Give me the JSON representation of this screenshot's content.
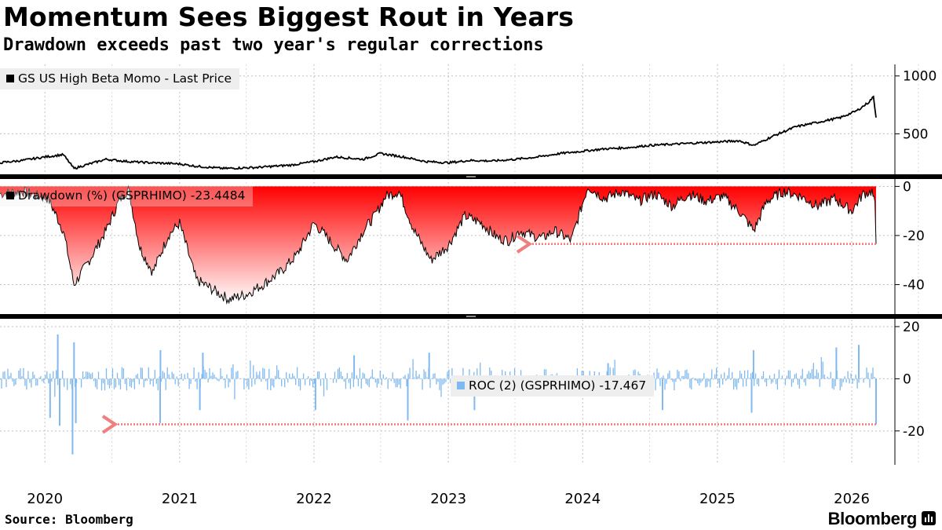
{
  "title": "Momentum Sees Biggest Rout in Years",
  "subtitle": "Drawdown exceeds past two year's regular corrections",
  "source": "Source: Bloomberg",
  "brand": "Bloomberg",
  "colors": {
    "price_line": "#000000",
    "drawdown_fill_top": "#ff0000",
    "drawdown_fill_bottom": "#ffffff",
    "roc_bars": "#7fb9f0",
    "annotation_arrow": "#f08080",
    "grid": "#bfbfbf",
    "divider": "#000000"
  },
  "chart_data": [
    {
      "type": "line",
      "panel": "price",
      "legend": "GS US High Beta Momo - Last Price",
      "ylim": [
        150,
        1100
      ],
      "yticks": [
        500,
        1000
      ],
      "x": [
        "2019-09-01",
        "2019-11-01",
        "2020-01-01",
        "2020-02-20",
        "2020-03-20",
        "2020-05-01",
        "2020-06-15",
        "2020-08-15",
        "2020-10-15",
        "2021-01-01",
        "2021-02-15",
        "2021-05-01",
        "2021-08-01",
        "2021-11-01",
        "2022-01-01",
        "2022-03-01",
        "2022-05-15",
        "2022-07-01",
        "2022-09-01",
        "2022-11-01",
        "2023-01-01",
        "2023-03-01",
        "2023-05-01",
        "2023-07-01",
        "2023-09-01",
        "2023-11-01",
        "2024-01-01",
        "2024-03-01",
        "2024-05-01",
        "2024-07-01",
        "2024-09-01",
        "2024-11-01",
        "2025-01-01",
        "2025-03-01",
        "2025-04-10",
        "2025-06-01",
        "2025-08-01",
        "2025-10-01",
        "2025-12-01",
        "2026-01-15",
        "2026-02-15",
        "2026-03-01",
        "2026-03-08"
      ],
      "y": [
        250,
        270,
        300,
        320,
        200,
        240,
        280,
        260,
        250,
        240,
        220,
        200,
        210,
        230,
        260,
        300,
        280,
        330,
        300,
        260,
        250,
        270,
        265,
        280,
        300,
        330,
        350,
        370,
        380,
        400,
        410,
        420,
        430,
        440,
        400,
        480,
        560,
        600,
        640,
        700,
        770,
        820,
        640
      ]
    },
    {
      "type": "area",
      "panel": "drawdown",
      "legend": "Drawdown (%) (GSPRHIMO) -23.4484",
      "ylim": [
        -52,
        3
      ],
      "yticks": [
        0,
        -20,
        -40
      ],
      "x": [
        "2019-09-01",
        "2019-11-01",
        "2020-01-10",
        "2020-02-20",
        "2020-03-20",
        "2020-05-01",
        "2020-06-15",
        "2020-07-20",
        "2020-08-15",
        "2020-09-15",
        "2020-10-20",
        "2020-12-01",
        "2021-01-01",
        "2021-02-15",
        "2021-04-01",
        "2021-05-15",
        "2021-07-01",
        "2021-08-15",
        "2021-10-01",
        "2021-11-15",
        "2022-01-01",
        "2022-02-01",
        "2022-03-01",
        "2022-04-01",
        "2022-05-15",
        "2022-06-15",
        "2022-07-15",
        "2022-08-20",
        "2022-09-30",
        "2022-11-15",
        "2023-01-01",
        "2023-02-15",
        "2023-04-01",
        "2023-05-15",
        "2023-06-15",
        "2023-07-15",
        "2023-08-15",
        "2023-09-15",
        "2023-10-15",
        "2023-12-01",
        "2024-01-15",
        "2024-03-01",
        "2024-04-15",
        "2024-06-01",
        "2024-07-15",
        "2024-09-01",
        "2024-10-15",
        "2024-12-01",
        "2025-01-15",
        "2025-03-01",
        "2025-04-10",
        "2025-05-15",
        "2025-07-01",
        "2025-08-15",
        "2025-10-01",
        "2025-11-15",
        "2026-01-01",
        "2026-02-01",
        "2026-02-25",
        "2026-03-05",
        "2026-03-08"
      ],
      "y": [
        -3,
        -2,
        -5,
        -18,
        -40,
        -30,
        -18,
        -6,
        -1,
        -25,
        -35,
        -20,
        -15,
        -38,
        -42,
        -46,
        -44,
        -40,
        -35,
        -28,
        -15,
        -20,
        -25,
        -30,
        -18,
        -12,
        -4,
        -2,
        -18,
        -30,
        -24,
        -12,
        -15,
        -21,
        -22,
        -18,
        -20,
        -21,
        -18,
        -22,
        0,
        -5,
        -2,
        -6,
        -3,
        -8,
        -3,
        -6,
        -4,
        -10,
        -18,
        -6,
        -2,
        -4,
        -8,
        -5,
        -10,
        -3,
        -2,
        -8,
        -23.4484
      ]
    },
    {
      "type": "bar",
      "panel": "roc",
      "legend": "ROC (2) (GSPRHIMO) -17.467",
      "ylim": [
        -33,
        23
      ],
      "yticks": [
        20,
        0,
        -20
      ],
      "x_range": [
        "2019-09-01",
        "2026-03-08"
      ],
      "events": [
        {
          "x": "2020-02-05",
          "y": 17
        },
        {
          "x": "2020-02-10",
          "y": -18
        },
        {
          "x": "2020-01-15",
          "y": -15
        },
        {
          "x": "2020-03-16",
          "y": -29
        },
        {
          "x": "2020-03-20",
          "y": 14
        },
        {
          "x": "2020-03-25",
          "y": -17
        },
        {
          "x": "2020-11-09",
          "y": -17
        },
        {
          "x": "2020-11-10",
          "y": 11
        },
        {
          "x": "2021-02-25",
          "y": -12
        },
        {
          "x": "2021-03-05",
          "y": 10
        },
        {
          "x": "2022-01-05",
          "y": -12
        },
        {
          "x": "2022-04-20",
          "y": 9
        },
        {
          "x": "2022-09-13",
          "y": -16
        },
        {
          "x": "2022-11-10",
          "y": 10
        },
        {
          "x": "2023-03-13",
          "y": -12
        },
        {
          "x": "2024-03-10",
          "y": 6
        },
        {
          "x": "2024-08-05",
          "y": -12
        },
        {
          "x": "2025-04-04",
          "y": -13
        },
        {
          "x": "2025-04-09",
          "y": 11
        },
        {
          "x": "2025-11-20",
          "y": 12
        },
        {
          "x": "2026-01-20",
          "y": 13
        },
        {
          "x": "2026-03-08",
          "y": -17.467
        }
      ]
    }
  ],
  "x_axis": {
    "start": "2019-09-01",
    "end": "2026-03-08",
    "labels": [
      "2020",
      "2021",
      "2022",
      "2023",
      "2024",
      "2025",
      "2026"
    ]
  },
  "annotations": [
    {
      "panel": "drawdown",
      "type": "arrow",
      "y": -23.4484,
      "from": "2026-03-08",
      "to": "2023-08-01"
    },
    {
      "panel": "roc",
      "type": "arrow",
      "y": -17.467,
      "from": "2026-03-08",
      "to": "2020-07-01"
    }
  ]
}
